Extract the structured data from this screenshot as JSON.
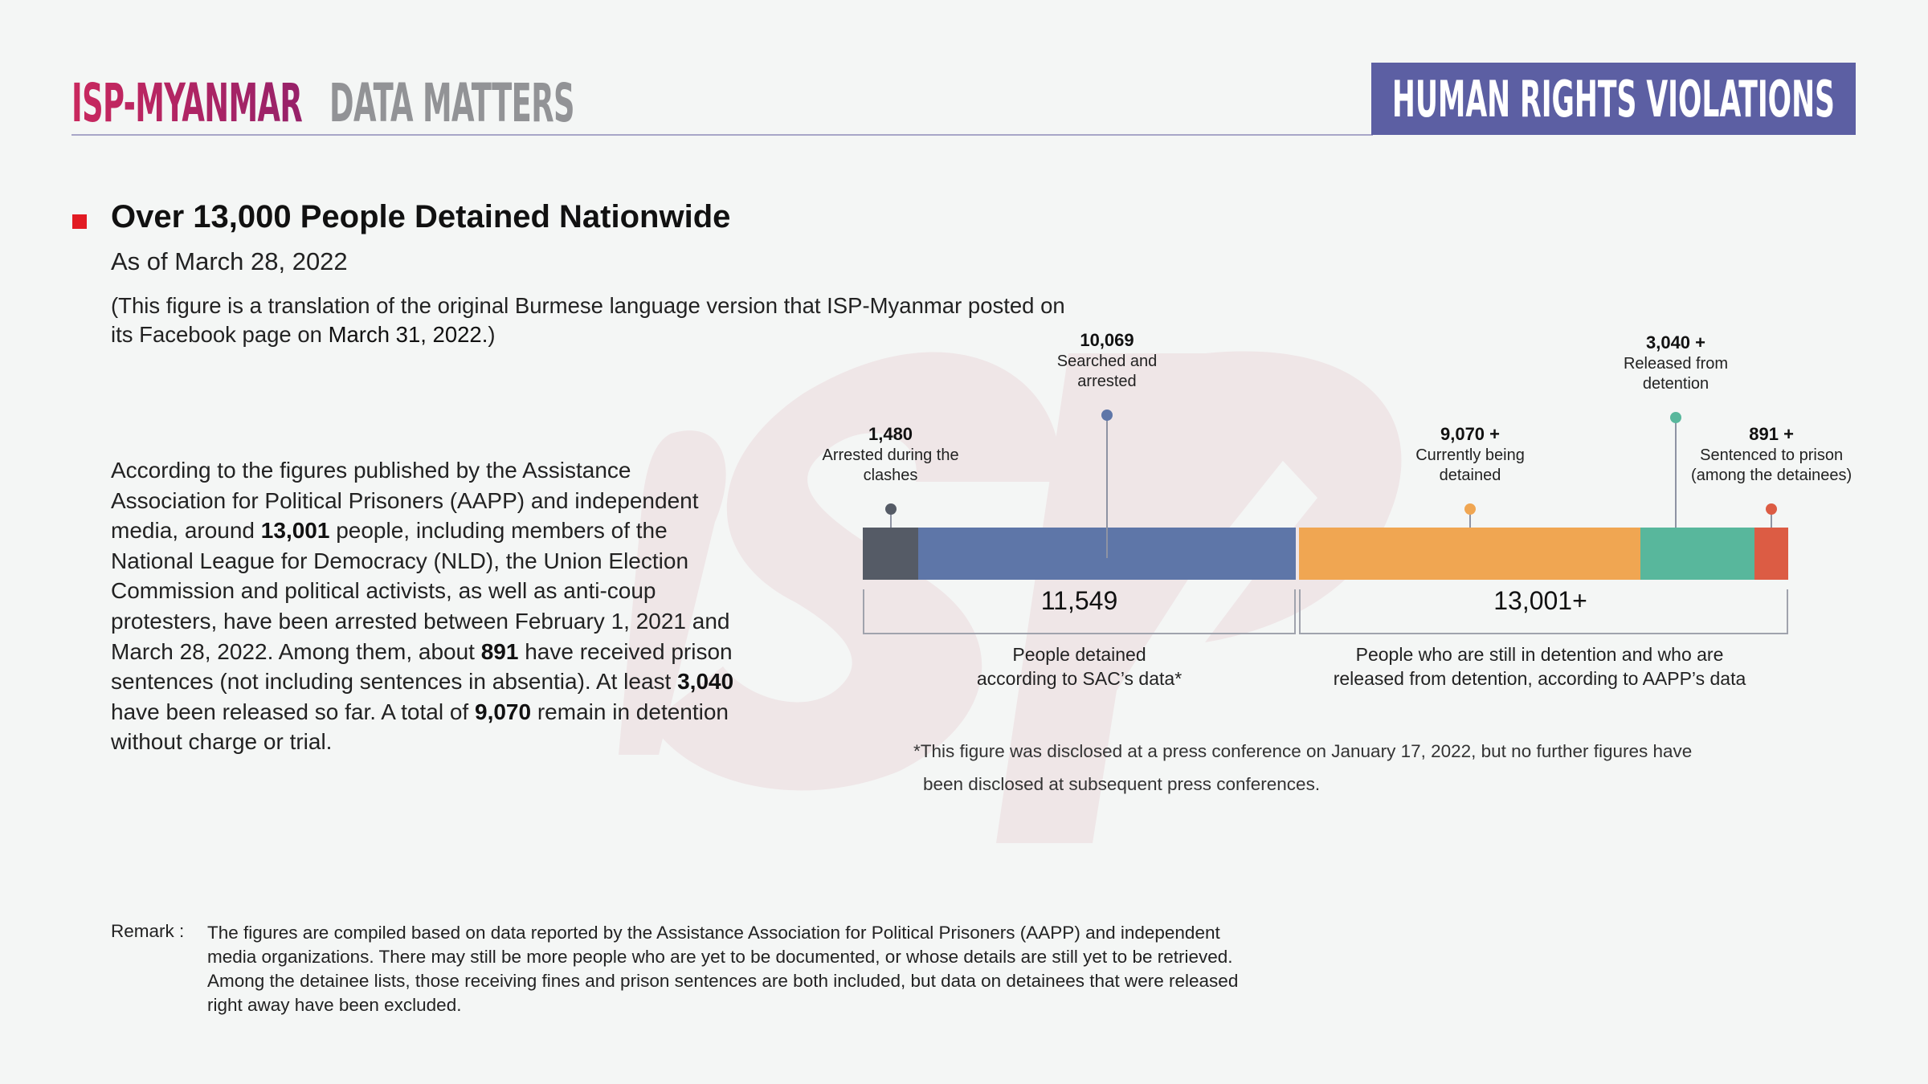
{
  "header": {
    "brand_primary": "ISP-MYANMAR",
    "brand_secondary": "DATA MATTERS",
    "section_badge": "HUMAN RIGHTS VIOLATIONS",
    "colors": {
      "brand_primary": "#c9285e",
      "brand_secondary": "#929396",
      "badge_bg": "#5c5fa3",
      "bullet": "#e21b23"
    }
  },
  "intro": {
    "title": "Over 13,000 People Detained Nationwide",
    "as_of": "As of March 28, 2022",
    "note_prefix": "(This figure is a translation of the original Burmese language version that ISP-Myanmar posted on its Facebook page on ",
    "note_date": "March 31, 2022.",
    "note_suffix": ")"
  },
  "body": {
    "parts": [
      {
        "t": "According to the figures published by the Assistance Association for Political Prisoners (AAPP) and independent media, around ",
        "b": false
      },
      {
        "t": "13,001",
        "b": true
      },
      {
        "t": " people, including members of the National League for Democracy (NLD), the Union Election Commission and political activists, as well as anti-coup protesters, have been arrested between February 1, 2021 and March 28, 2022. Among them, about ",
        "b": false
      },
      {
        "t": "891",
        "b": true
      },
      {
        "t": " have received prison sentences (not including sentences in absentia). At least ",
        "b": false
      },
      {
        "t": "3,040",
        "b": true
      },
      {
        "t": " have been released so far. A total of ",
        "b": false
      },
      {
        "t": "9,070",
        "b": true
      },
      {
        "t": " remain in detention without charge or trial.",
        "b": false
      }
    ]
  },
  "chart_data": {
    "type": "bar",
    "orientation": "horizontal-stacked",
    "title": "Over 13,000 People Detained Nationwide",
    "groups": [
      {
        "total_label": "11,549",
        "total": 11549,
        "description_lines": [
          "People detained",
          "according to SAC’s data*"
        ],
        "segments": [
          {
            "name": "Arrested during the clashes",
            "value": 1480,
            "value_label": "1,480",
            "label_lines": [
              "Arrested during the",
              "clashes"
            ],
            "color": "#555b66"
          },
          {
            "name": "Searched and arrested",
            "value": 10069,
            "value_label": "10,069",
            "label_lines": [
              "Searched and",
              "arrested"
            ],
            "color": "#5e76a8"
          }
        ]
      },
      {
        "total_label": "13,001+",
        "total": 13001,
        "description_lines": [
          "People who are still in detention and who are",
          "released from detention, according to AAPP’s data"
        ],
        "segments": [
          {
            "name": "Currently being detained",
            "value": 9070,
            "value_label": "9,070 +",
            "label_lines": [
              "Currently being",
              "detained"
            ],
            "color": "#f0a652"
          },
          {
            "name": "Released from detention",
            "value": 3040,
            "value_label": "3,040 +",
            "label_lines": [
              "Released from",
              "detention"
            ],
            "color": "#58b79c"
          },
          {
            "name": "Sentenced to prison (among the detainees)",
            "value": 891,
            "value_label": "891 +",
            "label_lines": [
              "Sentenced to prison",
              "(among the detainees)"
            ],
            "color": "#dc5c44"
          }
        ]
      }
    ],
    "footnote_lines": [
      "*This figure was disclosed at a press conference on January 17, 2022, but no further figures have",
      "been disclosed at subsequent press conferences."
    ]
  },
  "remark": {
    "label": "Remark :",
    "text": "The figures are compiled based on data reported by the Assistance Association for Political Prisoners (AAPP) and independent media organizations. There may still be more people who are yet to be documented, or whose details are still yet to be retrieved. Among the detainee lists, those receiving fines and prison sentences are both included, but data on detainees that were released right away have been excluded."
  }
}
